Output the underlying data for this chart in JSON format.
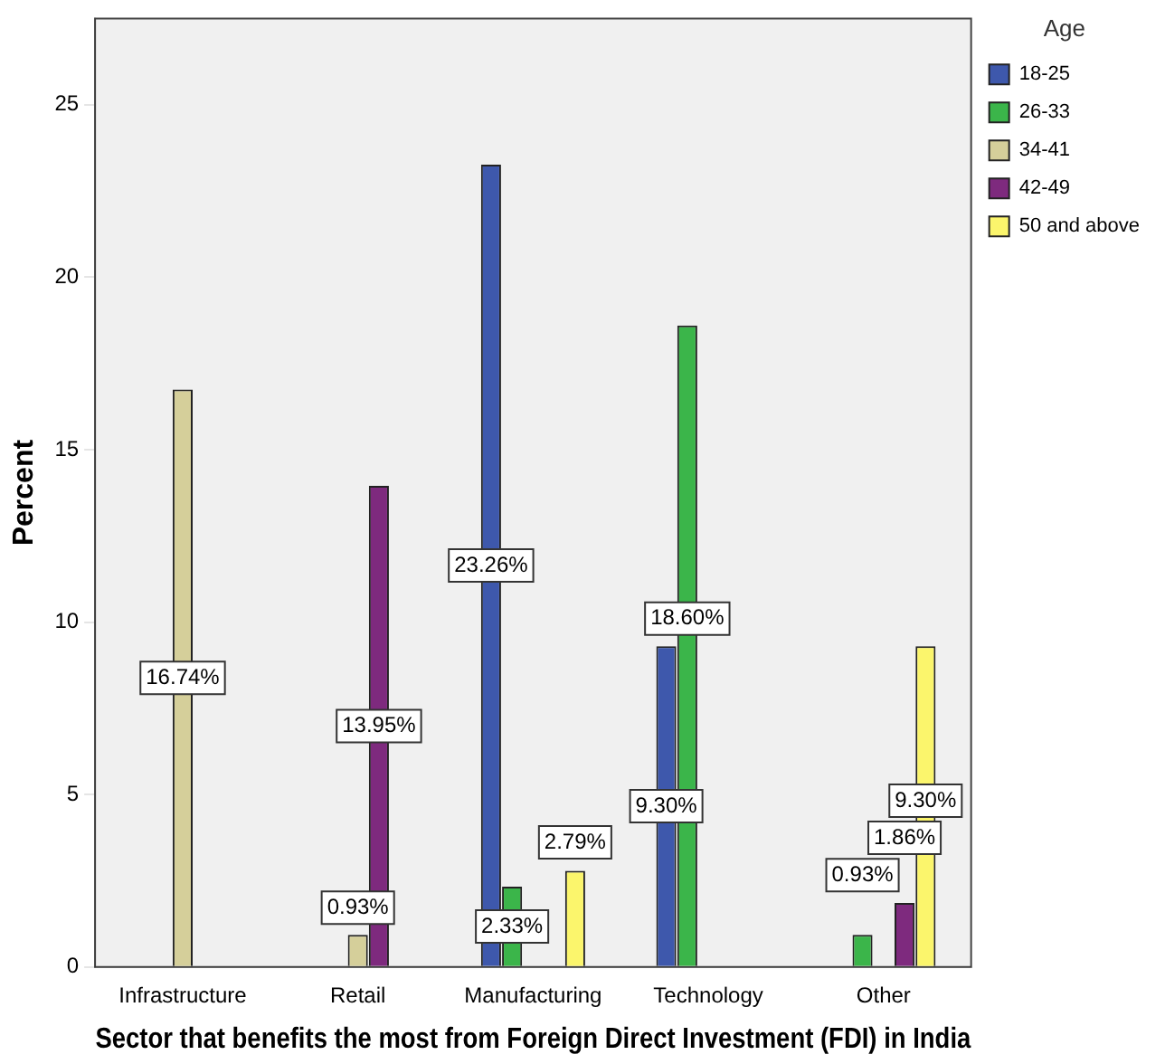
{
  "chart_data": {
    "type": "bar",
    "xlabel": "Sector that benefits the most from Foreign Direct Investment (FDI) in India",
    "ylabel": "Percent",
    "legend_title": "Age",
    "legend": "right",
    "categories": [
      "Infrastructure",
      "Retail",
      "Manufacturing",
      "Technology",
      "Other"
    ],
    "ylim": [
      0,
      27.5
    ],
    "yticks": [
      0,
      5,
      10,
      15,
      20,
      25
    ],
    "grid": false,
    "series": [
      {
        "name": "18-25",
        "color": "#3e58ac",
        "values": [
          null,
          null,
          23.26,
          9.3,
          null
        ],
        "value_labels": [
          null,
          null,
          "23.26%",
          "9.30%",
          null
        ]
      },
      {
        "name": "26-33",
        "color": "#3bb54a",
        "values": [
          null,
          null,
          2.33,
          18.6,
          0.93
        ],
        "value_labels": [
          null,
          null,
          "2.33%",
          "18.60%",
          "0.93%"
        ]
      },
      {
        "name": "34-41",
        "color": "#d5cf9a",
        "values": [
          16.74,
          0.93,
          null,
          null,
          null
        ],
        "value_labels": [
          "16.74%",
          "0.93%",
          null,
          null,
          null
        ]
      },
      {
        "name": "42-49",
        "color": "#7e2a7e",
        "values": [
          null,
          13.95,
          null,
          null,
          1.86
        ],
        "value_labels": [
          null,
          "13.95%",
          null,
          null,
          "1.86%"
        ]
      },
      {
        "name": "50 and above",
        "color": "#fbf56c",
        "values": [
          null,
          null,
          2.79,
          null,
          9.3
        ],
        "value_labels": [
          null,
          null,
          "2.79%",
          null,
          "9.30%"
        ]
      }
    ]
  }
}
